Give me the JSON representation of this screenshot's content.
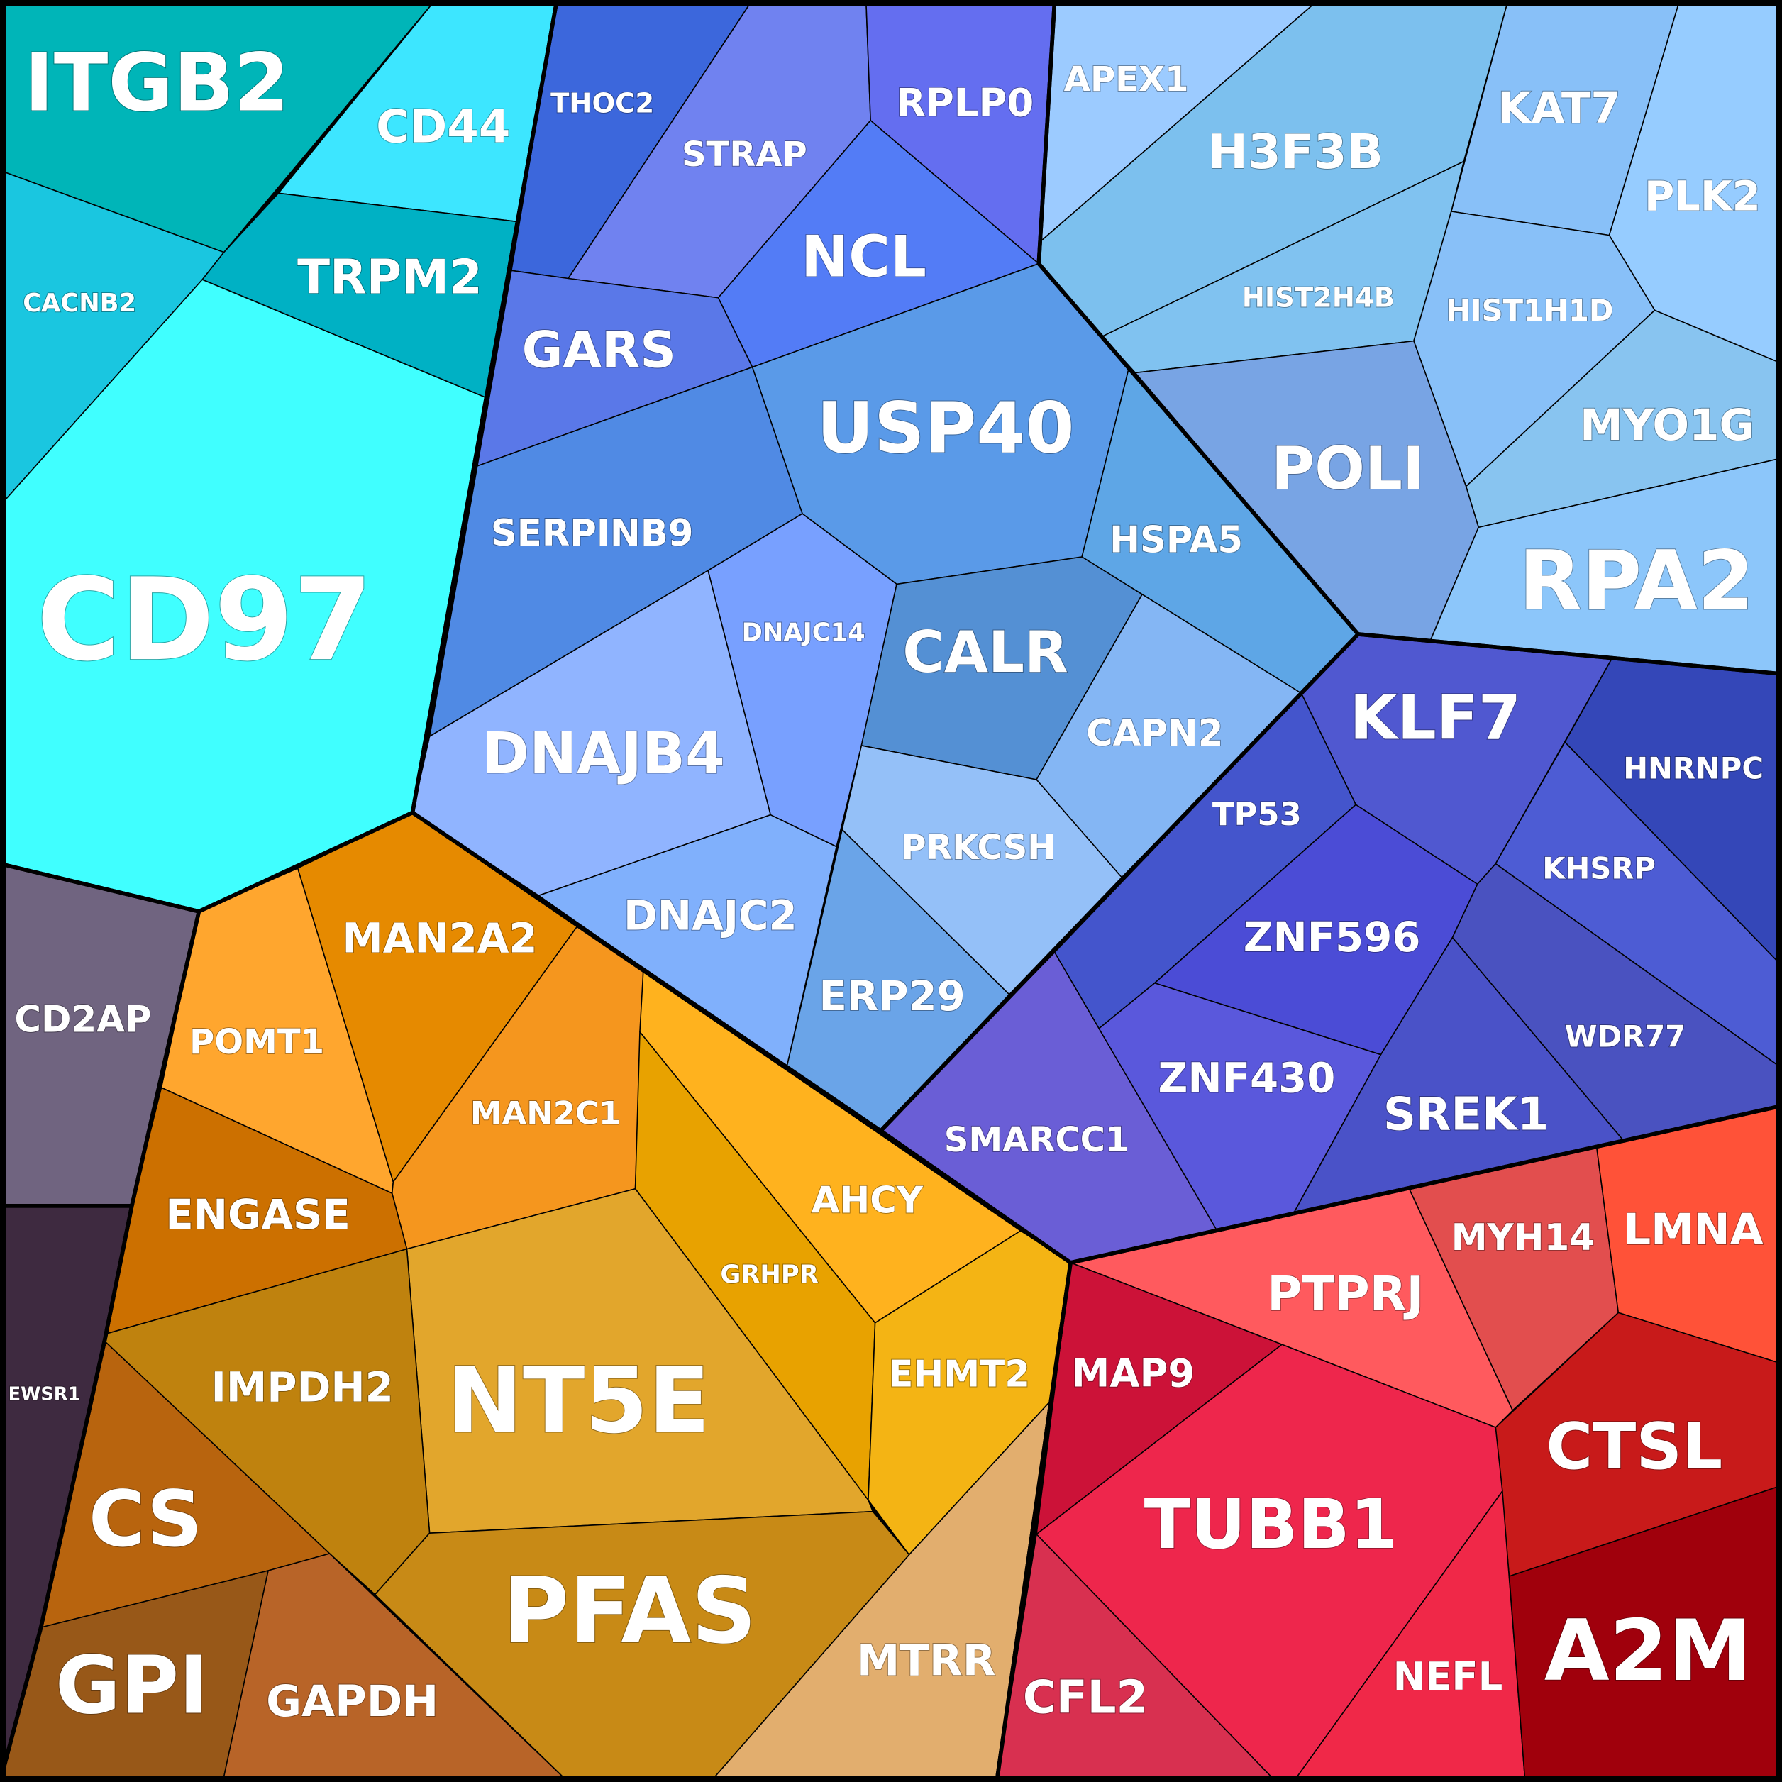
{
  "chart_data": {
    "type": "voronoi-treemap",
    "cells": [
      {
        "label": "ITGB2",
        "color": "#00b5b8"
      },
      {
        "label": "CD44",
        "color": "#3de6ff"
      },
      {
        "label": "CACNB2",
        "color": "#1ac6e0"
      },
      {
        "label": "TRPM2",
        "color": "#00b1c4"
      },
      {
        "label": "CD97",
        "color": "#40ffff"
      },
      {
        "label": "THOC2",
        "color": "#3c67dc"
      },
      {
        "label": "STRAP",
        "color": "#7082f0"
      },
      {
        "label": "RPLP0",
        "color": "#646ef0"
      },
      {
        "label": "NCL",
        "color": "#537cf6"
      },
      {
        "label": "GARS",
        "color": "#5a78e8"
      },
      {
        "label": "USP40",
        "color": "#5a9ae8"
      },
      {
        "label": "SERPINB9",
        "color": "#508ae4"
      },
      {
        "label": "HSPA5",
        "color": "#5ea6e6"
      },
      {
        "label": "DNAJC14",
        "color": "#78a0ff"
      },
      {
        "label": "CALR",
        "color": "#5490d4"
      },
      {
        "label": "CAPN2",
        "color": "#84b6f4"
      },
      {
        "label": "DNAJB4",
        "color": "#90b4ff"
      },
      {
        "label": "PRKCSH",
        "color": "#94c0f8"
      },
      {
        "label": "DNAJC2",
        "color": "#80b0fc"
      },
      {
        "label": "ERP29",
        "color": "#6aa4e8"
      },
      {
        "label": "APEX1",
        "color": "#9ccbff"
      },
      {
        "label": "H3F3B",
        "color": "#7cc0ee"
      },
      {
        "label": "KAT7",
        "color": "#88c0f8"
      },
      {
        "label": "PLK2",
        "color": "#96ccff"
      },
      {
        "label": "HIST2H4B",
        "color": "#80c2f0"
      },
      {
        "label": "HIST1H1D",
        "color": "#88c0f8"
      },
      {
        "label": "MYO1G",
        "color": "#88c4f0"
      },
      {
        "label": "POLI",
        "color": "#78a4e4"
      },
      {
        "label": "RPA2",
        "color": "#8cc6fa"
      },
      {
        "label": "KLF7",
        "color": "#5058d0"
      },
      {
        "label": "HNRNPC",
        "color": "#3447b8"
      },
      {
        "label": "KHSRP",
        "color": "#4d5cd4"
      },
      {
        "label": "TP53",
        "color": "#4455cc"
      },
      {
        "label": "ZNF596",
        "color": "#4b4cd6"
      },
      {
        "label": "WDR77",
        "color": "#4a52c0"
      },
      {
        "label": "SMARCC1",
        "color": "#6a5ed6"
      },
      {
        "label": "ZNF430",
        "color": "#5a58dc"
      },
      {
        "label": "SREK1",
        "color": "#4a52c8"
      },
      {
        "label": "PTPRJ",
        "color": "#ff5a5e"
      },
      {
        "label": "MYH14",
        "color": "#e24e4e"
      },
      {
        "label": "LMNA",
        "color": "#ff5238"
      },
      {
        "label": "MAP9",
        "color": "#cc1238"
      },
      {
        "label": "CTSL",
        "color": "#c81a1a"
      },
      {
        "label": "TUBB1",
        "color": "#ee264c"
      },
      {
        "label": "NEFL",
        "color": "#f02848"
      },
      {
        "label": "CFL2",
        "color": "#d83050"
      },
      {
        "label": "A2M",
        "color": "#a0000c"
      },
      {
        "label": "CD2AP",
        "color": "#706480"
      },
      {
        "label": "EWSR1",
        "color": "#3e2a40"
      },
      {
        "label": "POMT1",
        "color": "#ffa62e"
      },
      {
        "label": "MAN2A2",
        "color": "#e68a00"
      },
      {
        "label": "MAN2C1",
        "color": "#f5961e"
      },
      {
        "label": "ENGASE",
        "color": "#cc7000"
      },
      {
        "label": "AHCY",
        "color": "#ffb21e"
      },
      {
        "label": "GRHPR",
        "color": "#e8a200"
      },
      {
        "label": "EHMT2",
        "color": "#f4b414"
      },
      {
        "label": "NT5E",
        "color": "#e2a62c"
      },
      {
        "label": "IMPDH2",
        "color": "#bf820e"
      },
      {
        "label": "CS",
        "color": "#b8640e"
      },
      {
        "label": "GPI",
        "color": "#985818"
      },
      {
        "label": "GAPDH",
        "color": "#b86428"
      },
      {
        "label": "PFAS",
        "color": "#c88a16"
      },
      {
        "label": "MTRR",
        "color": "#e2ae6e"
      }
    ]
  }
}
